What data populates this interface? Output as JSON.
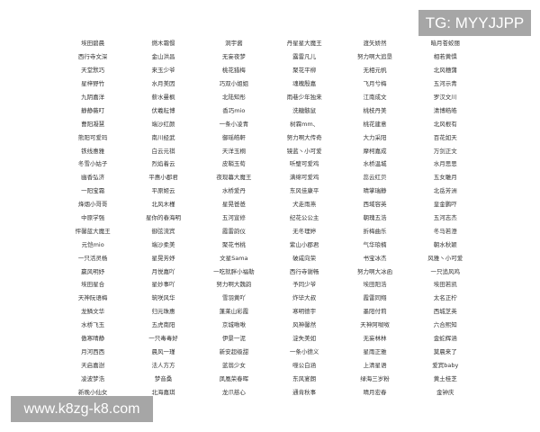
{
  "watermarks": {
    "top": "TG: MYYJJPP",
    "bottom": "www.k8zg-k8.com"
  },
  "table": {
    "rows": [
      [
        "埃田碧晨",
        "燃木霜憬",
        "洞宇酱",
        "丹星星大魔王",
        "渡矢娇然",
        "暗月苍蛟丽"
      ],
      [
        "西行寺文深",
        "金山洪昌",
        "无妄夜梦",
        "露雷凡儿",
        "努力啊大追垦",
        "相若黄惧"
      ],
      [
        "天堂默巧",
        "来玉少爷",
        "桃花猎梅",
        "聚花平柳",
        "无相元帆",
        "北风穗蒲"
      ],
      [
        "星梓野竹",
        "水月美因",
        "巧双小姐姐",
        "魂魄殷嘉",
        "飞月兮梅",
        "五河示青"
      ],
      [
        "九阴嘉洋",
        "薪水曼枫",
        "北陆知彤",
        "雨巷少年独来",
        "江南成文",
        "罗汉文川"
      ],
      [
        "静静薇叮",
        "伏羲耘博",
        "香巧mio",
        "洗糖骸鼠",
        "桃枝丹美",
        "清博皓皓"
      ],
      [
        "曹阳凝慧",
        "端沙红颜",
        "一条小凌青",
        "树霖mm、",
        "桃花建意",
        "北风根有"
      ],
      [
        "熊阳可爱玛",
        "南川经武",
        "御瑶皓軒",
        "努力啊大传奇",
        "大力采阳",
        "百花如天"
      ],
      [
        "铁线惠雅",
        "白云元祺",
        "天洋玉桐",
        "镜蓝丶小可爱",
        "摩柯嘉成",
        "万剑正文"
      ],
      [
        "冬雪小姑子",
        "烈焰着云",
        "皮鞘玉荀",
        "听璧可爱鸡",
        "水桥温城",
        "水月思思"
      ],
      [
        "幽香弘济",
        "平惠小郡君",
        "夜现暮大魔王",
        "满绵可爱鸡",
        "蕊云红贝",
        "五女雕月"
      ],
      [
        "一阳宝霜",
        "平原姬云",
        "水桥爱丹",
        "东风佳康平",
        "晴掌瑞静",
        "北岳芳洲"
      ],
      [
        "烽烟小哥哥",
        "北风木槿",
        "星晃爸爸",
        "犬走雨燕",
        "西域容英",
        "皇金鹏吓"
      ],
      [
        "中原学强",
        "星你的春海明",
        "五河宣修",
        "纪花公公主",
        "朝瑰五浩",
        "五河志杰"
      ],
      [
        "怦馨蓝大魔王",
        "御弦流宾",
        "霞雷韵仪",
        "无冬理婷",
        "折梅曲乐",
        "冬马若澄"
      ],
      [
        "元恺mio",
        "端沙柔美",
        "聚花书桃",
        "紫山小郡君",
        "气华琅楠",
        "朝水秋颖"
      ],
      [
        "一只活灵杨",
        "星晃芳妤",
        "文星Sama",
        "破咸向荣",
        "书宝冰杰",
        "风雅丶小可爱"
      ],
      [
        "赢风明妤",
        "月悦嘉吖",
        "一吃就胖小福勒",
        "西行寺谢畅",
        "努力啊大冰函",
        "一只追风鸡"
      ],
      [
        "埃田星合",
        "星妙事吖",
        "努力啊大魏韵",
        "予同少爷",
        "埃田阳浩",
        "埃田若凯"
      ],
      [
        "天神阮语梅",
        "筑咲风华",
        "雪羽黄吖",
        "炸毕大叔",
        "霞雷同翔",
        "太名正柠"
      ],
      [
        "龙鳞文华",
        "归元珠惠",
        "蓬莱山彩霞",
        "寒明德宇",
        "墨阳付莉",
        "西城芝英"
      ],
      [
        "水桥飞玉",
        "五虎南阳",
        "京城啾啾",
        "风神馨然",
        "天神阿呶呶",
        "六合熙知"
      ],
      [
        "傲寒晴静",
        "一只毒毒好",
        "伊景一泥",
        "淀失美如",
        "无妄林林",
        "金蛇辉涵"
      ],
      [
        "月河西西",
        "晨风一瑾",
        "新安超级甜",
        "一条小德义",
        "星雨正雅",
        "莫晨来了"
      ],
      [
        "天启嘉澍",
        "法人方方",
        "蓝翁少女",
        "噬公白涵",
        "上清星语",
        "爱宾baby"
      ],
      [
        "凌波梦浩",
        "梦音桑",
        "凤凰荣春晖",
        "东风宴朗",
        "绿海三岁粉",
        "黄土桂芝"
      ],
      [
        "新晚小仙女",
        "北海嘉琪",
        "龙爪慈心",
        "通肯秋事",
        "晴月宏春",
        "金钟庆"
      ]
    ]
  }
}
